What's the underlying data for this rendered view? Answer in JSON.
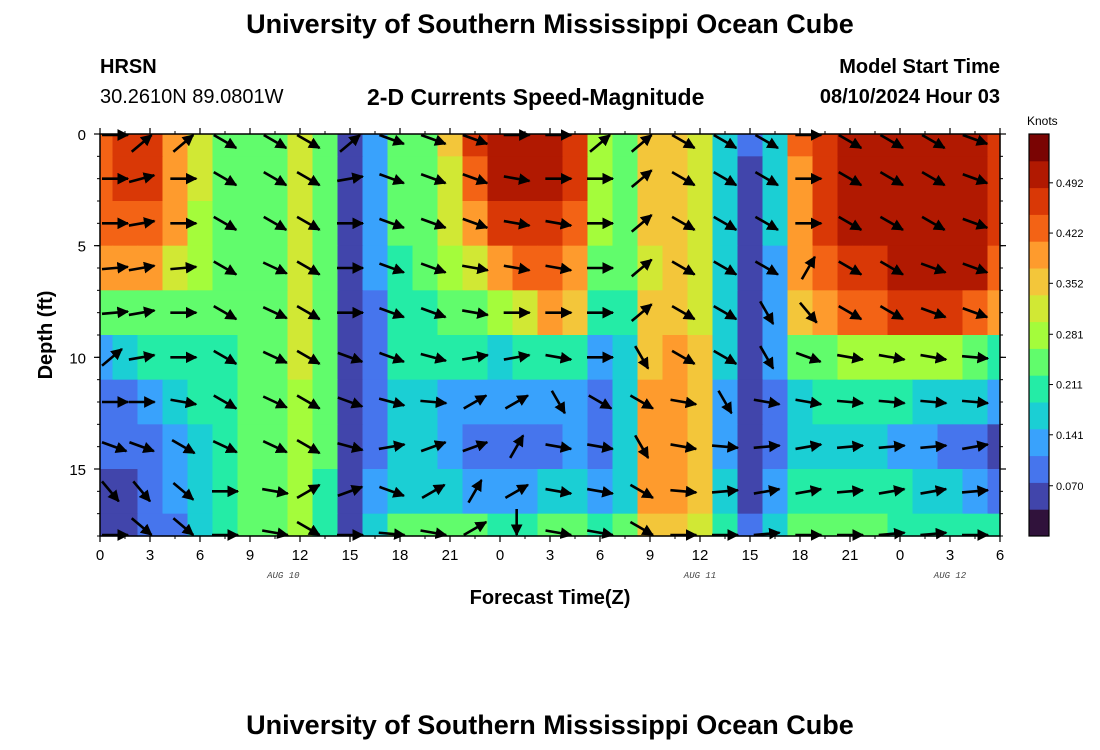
{
  "header": {
    "title": "University of Southern Mississippi Ocean Cube",
    "station": "HRSN",
    "coordinates": "30.2610N  89.0801W",
    "plot_title": "2-D Currents Speed-Magnitude",
    "model_start_label": "Model Start Time",
    "model_start_value": "08/10/2024 Hour 03"
  },
  "footer": {
    "title": "University of Southern Mississippi Ocean Cube"
  },
  "chart_data": {
    "type": "heatmap",
    "xlabel": "Forecast Time(Z)",
    "ylabel": "Depth (ft)",
    "x_ticks": [
      "0",
      "3",
      "6",
      "9",
      "12",
      "15",
      "18",
      "21",
      "0",
      "3",
      "6",
      "9",
      "12",
      "15",
      "18",
      "21",
      "0",
      "3",
      "6"
    ],
    "y_ticks": [
      "0",
      "5",
      "10",
      "15"
    ],
    "y_tick_values": [
      0,
      5,
      10,
      15
    ],
    "ylim": [
      0,
      18
    ],
    "x_range_hours": [
      0,
      54
    ],
    "date_labels": [
      {
        "label": "AUG 10",
        "hour": 11
      },
      {
        "label": "AUG 11",
        "hour": 36
      },
      {
        "label": "AUG 12",
        "hour": 51
      }
    ],
    "colorbar": {
      "unit": "Knots",
      "tick_labels": [
        "0.492",
        "0.422",
        "0.352",
        "0.281",
        "0.211",
        "0.141",
        "0.070"
      ],
      "tick_values": [
        0.492,
        0.422,
        0.352,
        0.281,
        0.211,
        0.141,
        0.07
      ],
      "range": [
        0,
        0.56
      ],
      "colors": [
        "#30123b",
        "#4145ab",
        "#4675ed",
        "#39a2fc",
        "#1bcfd4",
        "#24eca6",
        "#61fc6c",
        "#a4fc3b",
        "#d1e834",
        "#f3c63a",
        "#fe9b2d",
        "#f36315",
        "#d93806",
        "#b11901",
        "#7a0403"
      ]
    },
    "time_hours": [
      0,
      1.5,
      3,
      4.5,
      6,
      7.5,
      9,
      10.5,
      12,
      13.5,
      15,
      16.5,
      18,
      19.5,
      21,
      22.5,
      24,
      25.5,
      27,
      28.5,
      30,
      31.5,
      33,
      34.5,
      36,
      37.5,
      39,
      40.5,
      42,
      43.5,
      45,
      46.5,
      48,
      49.5,
      51,
      52.5,
      54
    ],
    "depth_ft": [
      0,
      2,
      4,
      6,
      8,
      10,
      12,
      14,
      16,
      18
    ],
    "speed_knots": [
      [
        0.44,
        0.45,
        0.46,
        0.4,
        0.3,
        0.25,
        0.24,
        0.26,
        0.3,
        0.25,
        0.05,
        0.13,
        0.24,
        0.26,
        0.36,
        0.47,
        0.5,
        0.51,
        0.51,
        0.46,
        0.28,
        0.24,
        0.35,
        0.37,
        0.33,
        0.18,
        0.08,
        0.16,
        0.42,
        0.47,
        0.5,
        0.51,
        0.51,
        0.52,
        0.51,
        0.51,
        0.47
      ],
      [
        0.44,
        0.45,
        0.46,
        0.4,
        0.3,
        0.25,
        0.24,
        0.26,
        0.3,
        0.25,
        0.05,
        0.13,
        0.24,
        0.26,
        0.33,
        0.44,
        0.49,
        0.5,
        0.5,
        0.45,
        0.28,
        0.24,
        0.34,
        0.36,
        0.32,
        0.18,
        0.07,
        0.15,
        0.41,
        0.47,
        0.5,
        0.51,
        0.51,
        0.52,
        0.51,
        0.51,
        0.47
      ],
      [
        0.43,
        0.44,
        0.44,
        0.38,
        0.29,
        0.25,
        0.24,
        0.26,
        0.3,
        0.24,
        0.05,
        0.12,
        0.23,
        0.25,
        0.31,
        0.4,
        0.46,
        0.48,
        0.48,
        0.43,
        0.27,
        0.24,
        0.34,
        0.35,
        0.31,
        0.17,
        0.07,
        0.15,
        0.4,
        0.46,
        0.49,
        0.5,
        0.51,
        0.51,
        0.5,
        0.5,
        0.46
      ],
      [
        0.38,
        0.4,
        0.4,
        0.33,
        0.27,
        0.24,
        0.24,
        0.26,
        0.3,
        0.24,
        0.05,
        0.12,
        0.22,
        0.23,
        0.28,
        0.33,
        0.38,
        0.42,
        0.44,
        0.41,
        0.26,
        0.23,
        0.33,
        0.34,
        0.3,
        0.17,
        0.07,
        0.14,
        0.38,
        0.44,
        0.47,
        0.48,
        0.49,
        0.49,
        0.49,
        0.49,
        0.44
      ],
      [
        0.25,
        0.26,
        0.26,
        0.25,
        0.24,
        0.23,
        0.24,
        0.26,
        0.3,
        0.24,
        0.05,
        0.11,
        0.21,
        0.22,
        0.24,
        0.26,
        0.28,
        0.31,
        0.38,
        0.37,
        0.22,
        0.21,
        0.35,
        0.36,
        0.32,
        0.16,
        0.06,
        0.13,
        0.35,
        0.41,
        0.43,
        0.44,
        0.45,
        0.45,
        0.45,
        0.44,
        0.4
      ],
      [
        0.14,
        0.15,
        0.19,
        0.21,
        0.22,
        0.22,
        0.24,
        0.26,
        0.3,
        0.24,
        0.05,
        0.11,
        0.2,
        0.2,
        0.2,
        0.19,
        0.18,
        0.2,
        0.22,
        0.22,
        0.14,
        0.18,
        0.36,
        0.38,
        0.35,
        0.15,
        0.06,
        0.12,
        0.24,
        0.26,
        0.27,
        0.28,
        0.28,
        0.27,
        0.27,
        0.26,
        0.22
      ],
      [
        0.1,
        0.11,
        0.14,
        0.17,
        0.2,
        0.22,
        0.24,
        0.26,
        0.29,
        0.23,
        0.05,
        0.11,
        0.18,
        0.16,
        0.14,
        0.12,
        0.12,
        0.12,
        0.13,
        0.14,
        0.1,
        0.17,
        0.38,
        0.4,
        0.36,
        0.14,
        0.06,
        0.11,
        0.18,
        0.2,
        0.21,
        0.2,
        0.19,
        0.18,
        0.17,
        0.15,
        0.12
      ],
      [
        0.08,
        0.08,
        0.11,
        0.14,
        0.18,
        0.21,
        0.24,
        0.26,
        0.29,
        0.23,
        0.05,
        0.11,
        0.17,
        0.15,
        0.13,
        0.11,
        0.1,
        0.1,
        0.11,
        0.12,
        0.09,
        0.17,
        0.39,
        0.41,
        0.37,
        0.14,
        0.06,
        0.11,
        0.16,
        0.17,
        0.16,
        0.15,
        0.14,
        0.12,
        0.1,
        0.08,
        0.07
      ],
      [
        0.05,
        0.05,
        0.08,
        0.12,
        0.17,
        0.21,
        0.24,
        0.26,
        0.29,
        0.22,
        0.05,
        0.12,
        0.18,
        0.17,
        0.16,
        0.14,
        0.14,
        0.14,
        0.15,
        0.16,
        0.12,
        0.18,
        0.38,
        0.4,
        0.36,
        0.15,
        0.06,
        0.12,
        0.2,
        0.22,
        0.22,
        0.21,
        0.2,
        0.18,
        0.16,
        0.13,
        0.1
      ],
      [
        0.06,
        0.06,
        0.08,
        0.11,
        0.16,
        0.2,
        0.24,
        0.26,
        0.29,
        0.22,
        0.07,
        0.17,
        0.23,
        0.24,
        0.24,
        0.23,
        0.22,
        0.22,
        0.23,
        0.23,
        0.2,
        0.23,
        0.34,
        0.35,
        0.32,
        0.19,
        0.1,
        0.18,
        0.24,
        0.25,
        0.24,
        0.23,
        0.22,
        0.22,
        0.21,
        0.2,
        0.19
      ]
    ],
    "vector_times": [
      0,
      2.5,
      5,
      7.5,
      10.5,
      12.5,
      15,
      17.5,
      20,
      22.5,
      25,
      27.5,
      30,
      32.5,
      35,
      37.5,
      40,
      42.5,
      45,
      47.5,
      50,
      52.5
    ],
    "vector_depths": [
      0,
      2,
      4,
      6,
      8,
      10,
      12,
      14,
      16,
      18
    ],
    "vector_angles_deg": [
      [
        0,
        40,
        40,
        -30,
        -30,
        -30,
        40,
        -20,
        -20,
        -20,
        0,
        0,
        40,
        40,
        -30,
        -30,
        -30,
        0,
        -30,
        -30,
        -30,
        -20
      ],
      [
        0,
        15,
        0,
        -30,
        -30,
        -30,
        10,
        -20,
        -20,
        -20,
        -10,
        0,
        0,
        40,
        -30,
        -30,
        -30,
        0,
        -30,
        -30,
        -30,
        -20
      ],
      [
        0,
        10,
        0,
        -30,
        -30,
        -30,
        0,
        -20,
        -20,
        -20,
        -10,
        -10,
        0,
        40,
        -30,
        -30,
        -30,
        0,
        -30,
        -30,
        -30,
        -20
      ],
      [
        5,
        10,
        5,
        -30,
        -25,
        -30,
        0,
        -20,
        -20,
        -10,
        -10,
        -10,
        0,
        40,
        -30,
        -30,
        -30,
        60,
        -30,
        -30,
        -20,
        -20
      ],
      [
        5,
        10,
        0,
        -30,
        -25,
        -30,
        0,
        -20,
        -20,
        -10,
        0,
        0,
        0,
        40,
        -30,
        -30,
        -60,
        -50,
        -30,
        -30,
        -20,
        -20
      ],
      [
        40,
        10,
        0,
        -30,
        -25,
        -30,
        -20,
        -20,
        -15,
        10,
        10,
        -10,
        0,
        -60,
        -30,
        -30,
        -60,
        -20,
        -10,
        -10,
        -10,
        -5
      ],
      [
        0,
        0,
        -10,
        -30,
        -25,
        -30,
        -20,
        -15,
        -5,
        30,
        30,
        -60,
        -30,
        -30,
        -10,
        -60,
        -10,
        -10,
        -5,
        -5,
        -5,
        -5
      ],
      [
        -20,
        -20,
        -30,
        -25,
        -25,
        -30,
        -15,
        10,
        20,
        20,
        60,
        -10,
        -10,
        -60,
        -10,
        -5,
        5,
        10,
        5,
        5,
        5,
        10
      ],
      [
        -50,
        -50,
        -40,
        0,
        -10,
        30,
        20,
        -20,
        30,
        60,
        30,
        -10,
        -10,
        -30,
        -5,
        5,
        10,
        10,
        5,
        10,
        10,
        5
      ],
      [
        0,
        -40,
        -40,
        0,
        -10,
        -30,
        0,
        -5,
        -10,
        30,
        -90,
        -10,
        -10,
        -30,
        0,
        0,
        5,
        0,
        0,
        5,
        5,
        0
      ]
    ]
  }
}
